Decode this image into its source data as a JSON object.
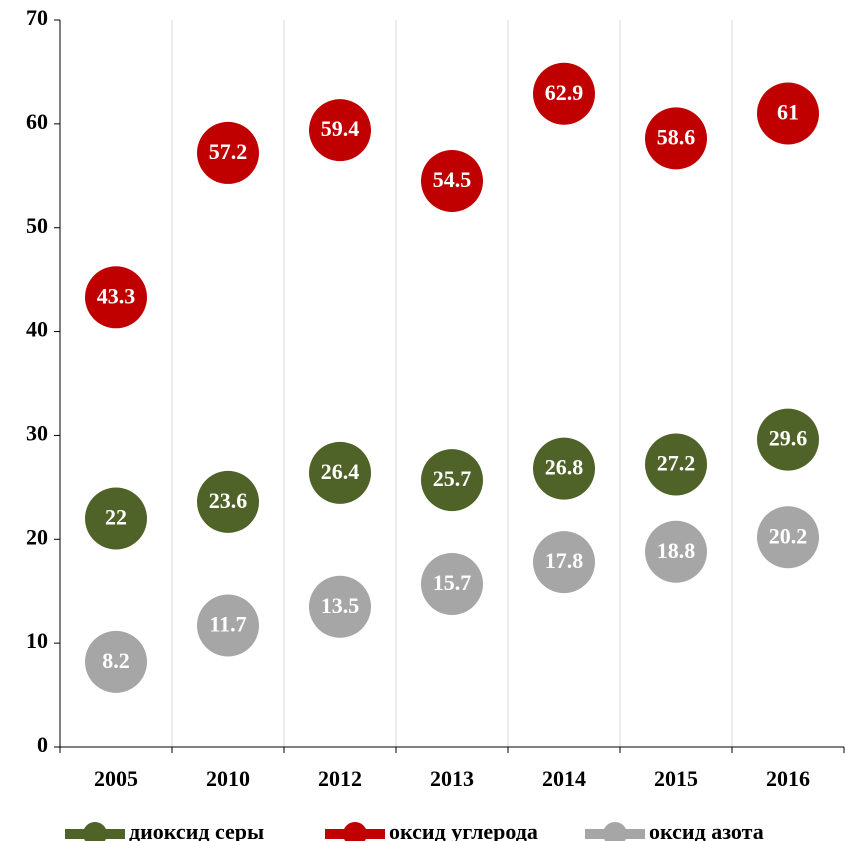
{
  "chart_data": {
    "type": "scatter",
    "categories": [
      "2005",
      "2010",
      "2012",
      "2013",
      "2014",
      "2015",
      "2016"
    ],
    "series": [
      {
        "name": "диоксид серы",
        "color": "#4f6228",
        "values": [
          22,
          23.6,
          26.4,
          25.7,
          26.8,
          27.2,
          29.6
        ]
      },
      {
        "name": "оксид углерода",
        "color": "#c00000",
        "values": [
          43.3,
          57.2,
          59.4,
          54.5,
          62.9,
          58.6,
          61
        ]
      },
      {
        "name": "оксид азота",
        "color": "#a6a6a6",
        "values": [
          8.2,
          11.7,
          13.5,
          15.7,
          17.8,
          18.8,
          20.2
        ]
      }
    ],
    "ylim": [
      0,
      70
    ],
    "yticks": [
      0,
      10,
      20,
      30,
      40,
      50,
      60,
      70
    ],
    "grid": true,
    "legend": "bottom"
  }
}
